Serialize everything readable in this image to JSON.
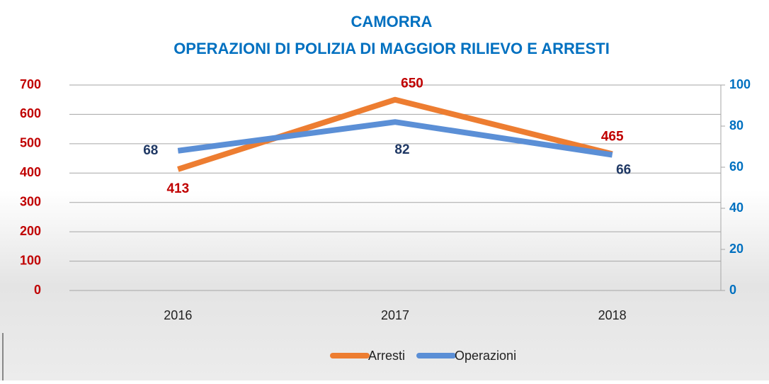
{
  "chart_data": {
    "type": "line",
    "title": "CAMORRA",
    "subtitle": "OPERAZIONI DI POLIZIA DI MAGGIOR RILIEVO E ARRESTI",
    "categories": [
      "2016",
      "2017",
      "2018"
    ],
    "series": [
      {
        "name": "Arresti",
        "color": "#ed7d31",
        "values": [
          413,
          650,
          465
        ]
      },
      {
        "name": "Operazioni",
        "color": "#5b8fd6",
        "values": [
          68,
          82,
          66
        ],
        "axis": "y2"
      }
    ],
    "ylim": [
      0,
      700
    ],
    "yticks": [
      0,
      100,
      200,
      300,
      400,
      500,
      600,
      700
    ],
    "y2lim": [
      0,
      100
    ],
    "y2ticks": [
      0,
      20,
      40,
      60,
      80,
      100
    ],
    "grid": true,
    "legend": "bottom"
  }
}
